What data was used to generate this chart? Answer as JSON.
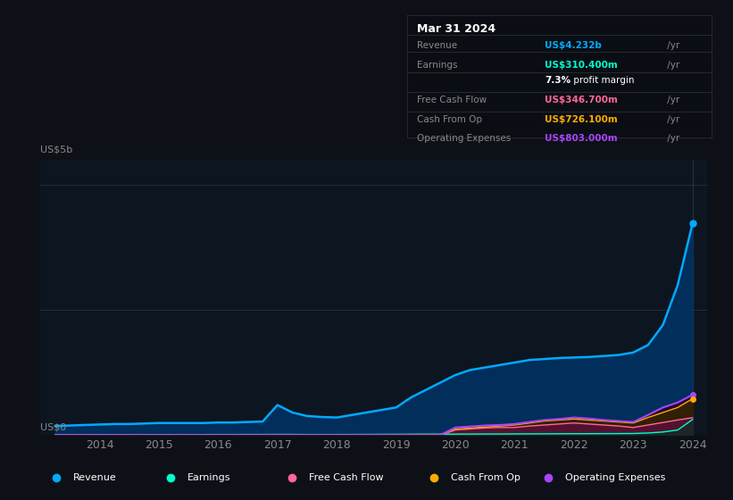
{
  "bg_color": "#0d1117",
  "plot_bg_color": "#0d1520",
  "grid_color": "#1e2d3d",
  "title_box_color": "#0a0e14",
  "years": [
    2013.25,
    2013.5,
    2013.75,
    2014.0,
    2014.25,
    2014.5,
    2014.75,
    2015.0,
    2015.25,
    2015.5,
    2015.75,
    2016.0,
    2016.25,
    2016.5,
    2016.75,
    2017.0,
    2017.25,
    2017.5,
    2017.75,
    2018.0,
    2018.25,
    2018.5,
    2018.75,
    2019.0,
    2019.25,
    2019.5,
    2019.75,
    2020.0,
    2020.25,
    2020.5,
    2020.75,
    2021.0,
    2021.25,
    2021.5,
    2021.75,
    2022.0,
    2022.25,
    2022.5,
    2022.75,
    2023.0,
    2023.25,
    2023.5,
    2023.75,
    2024.0
  ],
  "revenue": [
    0.18,
    0.19,
    0.2,
    0.21,
    0.22,
    0.22,
    0.23,
    0.24,
    0.24,
    0.24,
    0.24,
    0.25,
    0.25,
    0.26,
    0.27,
    0.6,
    0.45,
    0.38,
    0.36,
    0.35,
    0.4,
    0.45,
    0.5,
    0.55,
    0.75,
    0.9,
    1.05,
    1.2,
    1.3,
    1.35,
    1.4,
    1.45,
    1.5,
    1.52,
    1.54,
    1.55,
    1.56,
    1.58,
    1.6,
    1.65,
    1.8,
    2.2,
    3.0,
    4.23
  ],
  "earnings": [
    0.005,
    0.005,
    0.006,
    0.006,
    0.007,
    0.007,
    0.008,
    0.008,
    0.008,
    0.009,
    0.009,
    0.01,
    0.01,
    0.011,
    0.011,
    0.012,
    0.012,
    0.01,
    0.01,
    0.01,
    0.011,
    0.012,
    0.013,
    0.014,
    0.015,
    0.016,
    0.017,
    0.018,
    0.019,
    0.02,
    0.021,
    0.022,
    0.023,
    0.024,
    0.025,
    0.026,
    0.027,
    0.028,
    0.029,
    0.03,
    0.04,
    0.06,
    0.1,
    0.31
  ],
  "free_cash_flow": [
    0.0,
    0.0,
    0.0,
    0.0,
    0.0,
    0.0,
    0.0,
    0.0,
    0.0,
    0.0,
    0.0,
    0.0,
    0.0,
    0.0,
    0.0,
    0.0,
    0.0,
    0.0,
    0.0,
    0.0,
    0.0,
    0.0,
    0.0,
    0.0,
    0.0,
    0.0,
    0.0,
    0.1,
    0.12,
    0.14,
    0.15,
    0.15,
    0.18,
    0.2,
    0.22,
    0.24,
    0.22,
    0.2,
    0.18,
    0.15,
    0.2,
    0.25,
    0.3,
    0.347
  ],
  "cash_from_op": [
    0.0,
    0.0,
    0.0,
    0.0,
    0.0,
    0.0,
    0.0,
    0.0,
    0.0,
    0.0,
    0.0,
    0.0,
    0.0,
    0.0,
    0.0,
    0.0,
    0.0,
    0.0,
    0.0,
    0.0,
    0.0,
    0.0,
    0.0,
    0.005,
    0.01,
    0.01,
    0.01,
    0.12,
    0.14,
    0.16,
    0.18,
    0.2,
    0.24,
    0.28,
    0.3,
    0.32,
    0.3,
    0.28,
    0.26,
    0.24,
    0.35,
    0.45,
    0.55,
    0.726
  ],
  "operating_expenses": [
    0.0,
    0.0,
    0.0,
    0.0,
    0.0,
    0.0,
    0.0,
    0.0,
    0.0,
    0.0,
    0.0,
    0.0,
    0.0,
    0.0,
    0.0,
    0.0,
    0.0,
    0.0,
    0.0,
    0.0,
    0.0,
    0.0,
    0.0,
    0.0,
    0.0,
    0.0,
    0.0,
    0.15,
    0.17,
    0.19,
    0.2,
    0.22,
    0.26,
    0.3,
    0.32,
    0.35,
    0.33,
    0.3,
    0.28,
    0.26,
    0.4,
    0.55,
    0.65,
    0.803
  ],
  "revenue_color": "#00aaff",
  "earnings_color": "#00ffcc",
  "free_cash_flow_color": "#ff6699",
  "cash_from_op_color": "#ffaa00",
  "operating_expenses_color": "#aa44ff",
  "revenue_fill_color": "#003366",
  "earnings_fill_color": "#003322",
  "free_cash_flow_fill_color": "#551133",
  "cash_from_op_fill_color": "#332200",
  "operating_expenses_fill_color": "#220033",
  "tooltip_title": "Mar 31 2024",
  "tooltip_rows": [
    {
      "label": "Revenue",
      "value": "US$4.232b",
      "value_color": "#00aaff"
    },
    {
      "label": "Earnings",
      "value": "US$310.400m",
      "value_color": "#00ffcc"
    },
    {
      "label": "",
      "value": "7.3% profit margin",
      "value_color": "#ffffff"
    },
    {
      "label": "Free Cash Flow",
      "value": "US$346.700m",
      "value_color": "#ff6699"
    },
    {
      "label": "Cash From Op",
      "value": "US$726.100m",
      "value_color": "#ffaa00"
    },
    {
      "label": "Operating Expenses",
      "value": "US$803.000m",
      "value_color": "#aa44ff"
    }
  ],
  "ylabel_top": "US$5b",
  "ylabel_zero": "US$0",
  "xlim": [
    2013.0,
    2024.25
  ],
  "ylim": [
    0,
    5.5
  ],
  "xtick_years": [
    2014,
    2015,
    2016,
    2017,
    2018,
    2019,
    2020,
    2021,
    2022,
    2023,
    2024
  ],
  "legend_items": [
    {
      "label": "Revenue",
      "color": "#00aaff"
    },
    {
      "label": "Earnings",
      "color": "#00ffcc"
    },
    {
      "label": "Free Cash Flow",
      "color": "#ff6699"
    },
    {
      "label": "Cash From Op",
      "color": "#ffaa00"
    },
    {
      "label": "Operating Expenses",
      "color": "#aa44ff"
    }
  ]
}
